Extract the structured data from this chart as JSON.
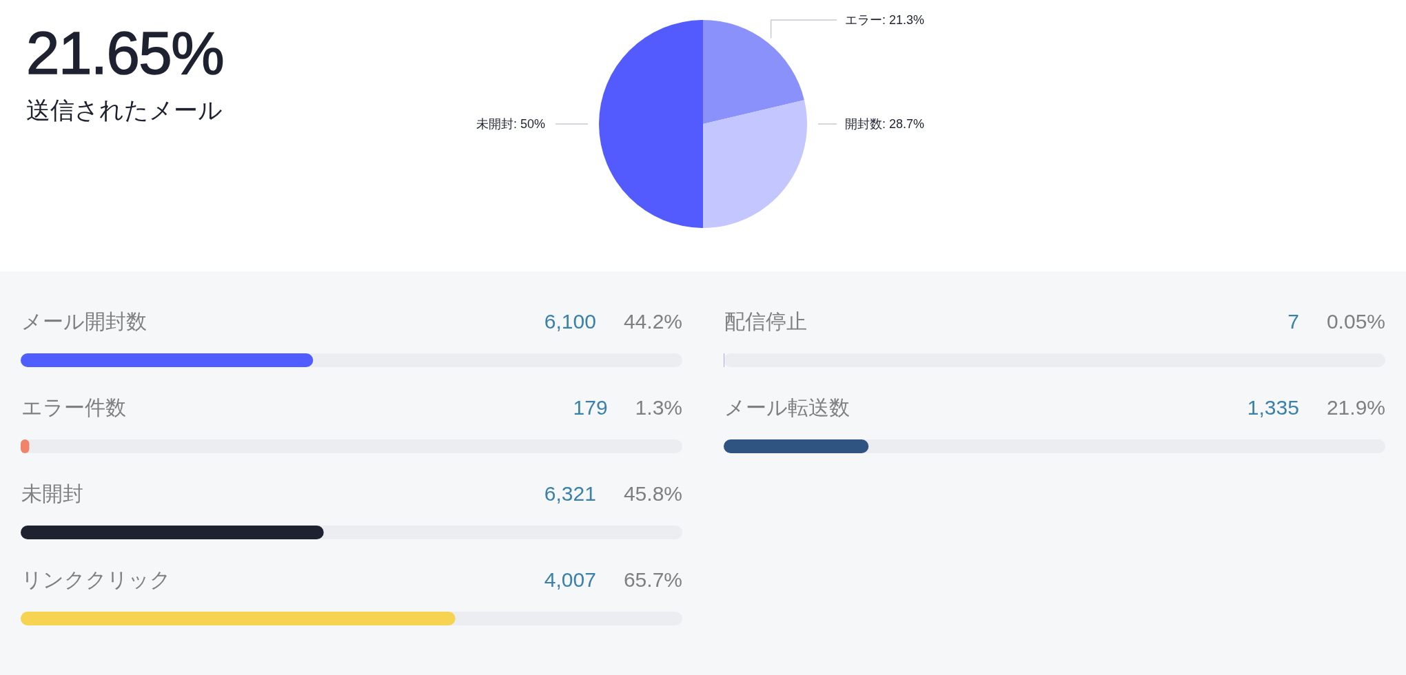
{
  "chart_data": [
    {
      "type": "other",
      "title": "21.65%",
      "subtitle": "送信されたメール"
    },
    {
      "type": "pie",
      "categories": [
        "エラー: 21.3%",
        "開封数: 28.7%",
        "未開封: 50%"
      ],
      "values": [
        21.3,
        28.7,
        50
      ],
      "colors": [
        "#8b91fb",
        "#c4c7ff",
        "#535bff"
      ]
    },
    {
      "type": "bar",
      "orientation": "horizontal",
      "categories": [
        "メール開封数",
        "エラー件数",
        "未開封",
        "リンククリック"
      ],
      "values": [
        44.2,
        1.3,
        45.8,
        65.7
      ],
      "colors": [
        "#505dff",
        "#f0836a",
        "#1d2130",
        "#f6d350"
      ],
      "xlim": [
        0,
        100
      ],
      "value_labels": [
        "44.2%",
        "1.3%",
        "45.8%",
        "65.7%"
      ],
      "annotations": [
        "6,100",
        "179",
        "6,321",
        "4,007"
      ]
    },
    {
      "type": "bar",
      "orientation": "horizontal",
      "categories": [
        "配信停止",
        "メール転送数"
      ],
      "values": [
        0.05,
        21.9
      ],
      "colors": [
        "#505dff",
        "#2f5481"
      ],
      "xlim": [
        0,
        100
      ],
      "value_labels": [
        "0.05%",
        "21.9%"
      ],
      "annotations": [
        "7",
        "1,335"
      ]
    }
  ]
}
